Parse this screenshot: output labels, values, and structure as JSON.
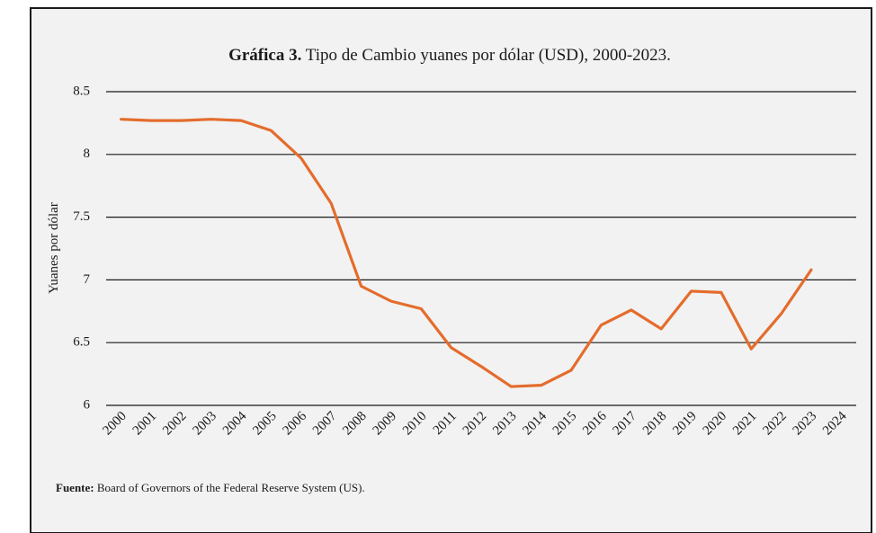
{
  "chart_data": {
    "type": "line",
    "title_label": "Gráfica 3.",
    "title": "Tipo de Cambio yuanes por dólar (USD), 2000-2023.",
    "y_label": "Yuanes por dólar",
    "source_label": "Fuente:",
    "source": "Board of Governors of the Federal Reserve System (US).",
    "categories": [
      "2000",
      "2001",
      "2002",
      "2003",
      "2004",
      "2005",
      "2006",
      "2007",
      "2008",
      "2009",
      "2010",
      "2011",
      "2012",
      "2013",
      "2014",
      "2015",
      "2016",
      "2017",
      "2018",
      "2019",
      "2020",
      "2021",
      "2022",
      "2023",
      "2024"
    ],
    "series": [
      {
        "name": "Yuanes por dólar",
        "color": "#e46c2c",
        "values": [
          8.28,
          8.27,
          8.27,
          8.28,
          8.27,
          8.19,
          7.97,
          7.61,
          6.95,
          6.83,
          6.77,
          6.46,
          6.31,
          6.15,
          6.16,
          6.28,
          6.64,
          6.76,
          6.61,
          6.91,
          6.9,
          6.45,
          6.73,
          7.08,
          null
        ]
      }
    ],
    "ylim": [
      6,
      8.5
    ],
    "yticks": [
      6,
      6.5,
      7,
      7.5,
      8,
      8.5
    ],
    "grid": true
  }
}
